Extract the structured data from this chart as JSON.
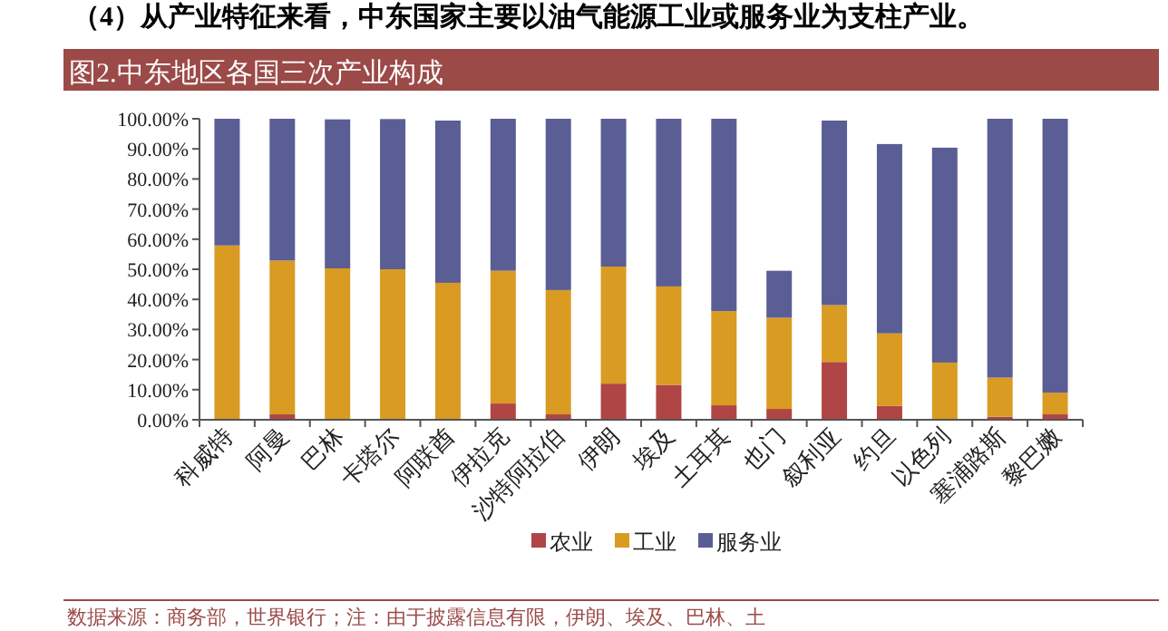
{
  "chart_data": {
    "type": "bar",
    "stacked": true,
    "title": "图2.中东地区各国三次产业构成",
    "annotations": [
      "（4）从产业特征来看，中东国家主要以油气能源工业或服务业为支柱产业。",
      "数据来源：商务部，世界银行；注：由于披露信息有限，伊朗、埃及、巴林、土"
    ],
    "categories": [
      "科威特",
      "阿曼",
      "巴林",
      "卡塔尔",
      "阿联酋",
      "伊拉克",
      "沙特阿拉伯",
      "伊朗",
      "埃及",
      "土耳其",
      "也门",
      "叙利亚",
      "约旦",
      "以色列",
      "塞浦路斯",
      "黎巴嫩"
    ],
    "series": [
      {
        "name": "农业",
        "color": "#b04545",
        "values": [
          0,
          1.8,
          null,
          null,
          null,
          5.4,
          1.8,
          12.0,
          11.6,
          4.8,
          3.6,
          19.2,
          4.6,
          null,
          1.0,
          1.8
        ]
      },
      {
        "name": "工业",
        "color": "#d99b22",
        "values": [
          57.9,
          51.1,
          50.3,
          50.0,
          45.5,
          44.1,
          41.3,
          38.9,
          32.7,
          31.3,
          30.3,
          18.9,
          24.1,
          19.0,
          13.0,
          7.2
        ]
      },
      {
        "name": "服务业",
        "color": "#5a5e94",
        "values": [
          42.1,
          47.1,
          49.5,
          49.9,
          53.9,
          50.5,
          56.9,
          49.1,
          55.7,
          63.9,
          15.6,
          61.3,
          62.9,
          71.4,
          86.0,
          91.0
        ]
      }
    ],
    "ylim": [
      0,
      100
    ],
    "yticks": [
      {
        "value": 0,
        "label": "0.00%"
      },
      {
        "value": 10,
        "label": "10.00%"
      },
      {
        "value": 20,
        "label": "20.00%"
      },
      {
        "value": 30,
        "label": "30.00%"
      },
      {
        "value": 40,
        "label": "40.00%"
      },
      {
        "value": 50,
        "label": "50.00%"
      },
      {
        "value": 60,
        "label": "60.00%"
      },
      {
        "value": 70,
        "label": "70.00%"
      },
      {
        "value": 80,
        "label": "80.00%"
      },
      {
        "value": 90,
        "label": "90.00%"
      },
      {
        "value": 100,
        "label": "100.00%"
      }
    ],
    "legend": "bottom"
  }
}
